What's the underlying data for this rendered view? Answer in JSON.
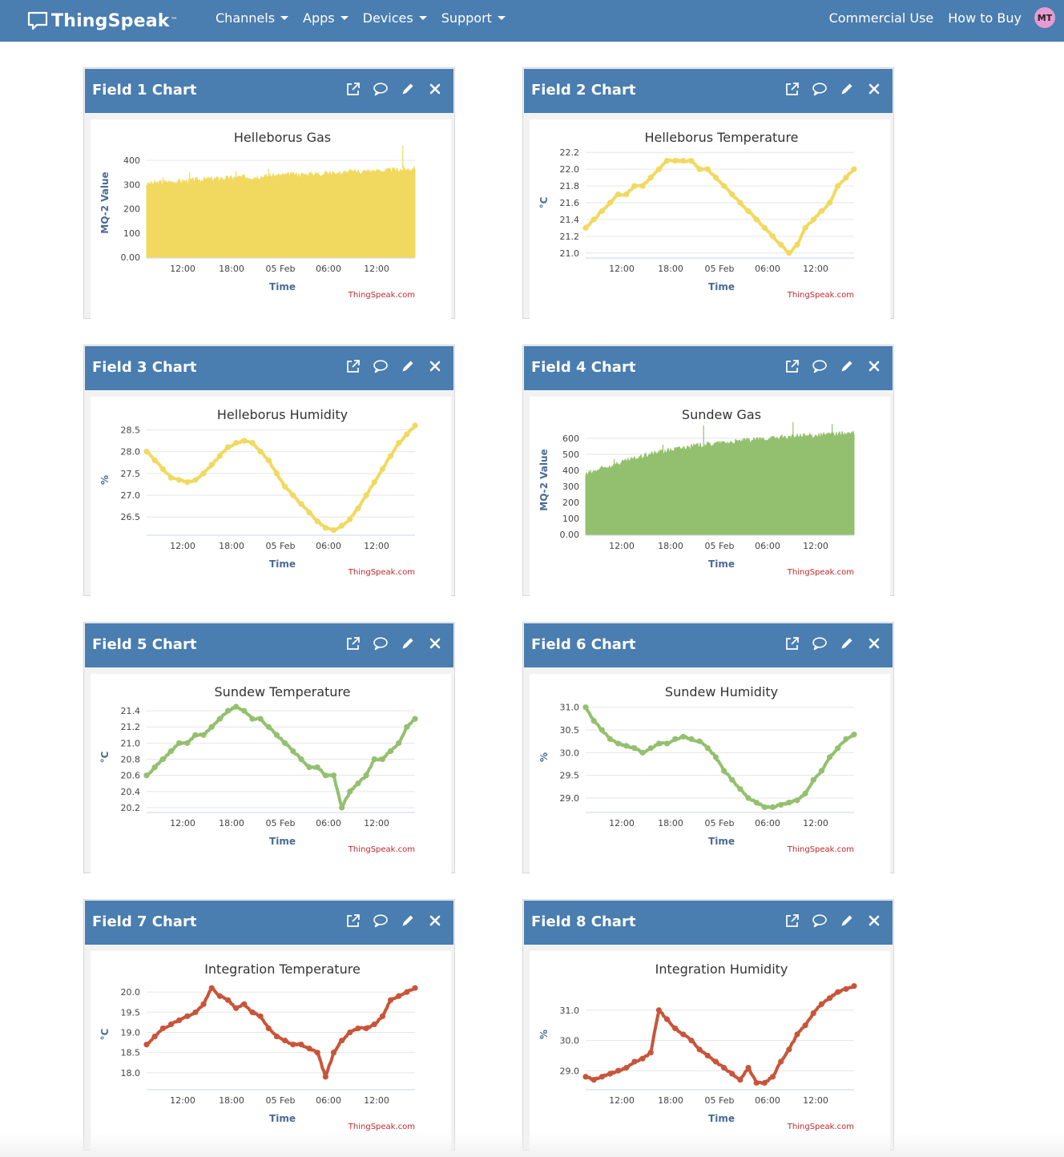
{
  "nav": {
    "brand": "ThingSpeak",
    "brand_tm": "™",
    "menu": [
      "Channels",
      "Apps",
      "Devices",
      "Support"
    ],
    "right_links": [
      "Commercial Use",
      "How to Buy"
    ],
    "avatar_initials": "MT"
  },
  "widgets": [
    {
      "title": "Field 1 Chart"
    },
    {
      "title": "Field 2 Chart"
    },
    {
      "title": "Field 3 Chart"
    },
    {
      "title": "Field 4 Chart"
    },
    {
      "title": "Field 5 Chart"
    },
    {
      "title": "Field 6 Chart"
    },
    {
      "title": "Field 7 Chart"
    },
    {
      "title": "Field 8 Chart"
    }
  ],
  "icons": {
    "open_external": "external-link-icon",
    "comment": "comment-icon",
    "edit": "pencil-icon",
    "close": "close-icon"
  },
  "credit": "ThingSpeak.com",
  "chart_data": [
    {
      "type": "area",
      "title": "Helleborus Gas",
      "xlabel": "Time",
      "ylabel": "MQ-2 Value",
      "color": "#f1d95f",
      "x_ticks": [
        "12:00",
        "18:00",
        "05 Feb",
        "06:00",
        "12:00"
      ],
      "y_ticks": [
        "0.00",
        "100",
        "200",
        "300",
        "400"
      ],
      "ylim": [
        0,
        450
      ],
      "x": [
        0,
        1,
        2,
        3,
        4,
        5,
        6,
        7,
        8,
        9,
        10,
        11,
        12,
        13,
        14,
        15,
        16,
        17,
        18,
        19,
        20,
        21,
        22,
        23,
        24,
        25,
        26,
        27,
        28,
        29,
        30,
        31,
        32,
        33
      ],
      "y": [
        300,
        305,
        308,
        310,
        312,
        314,
        318,
        320,
        322,
        324,
        326,
        328,
        330,
        330,
        332,
        334,
        336,
        338,
        340,
        340,
        342,
        344,
        345,
        346,
        348,
        350,
        352,
        354,
        355,
        356,
        358,
        360,
        362,
        365
      ],
      "spikes": [
        [
          2,
          330
        ],
        [
          5.3,
          350
        ],
        [
          11,
          355
        ],
        [
          15,
          365
        ],
        [
          25,
          365
        ],
        [
          31.5,
          460
        ]
      ]
    },
    {
      "type": "line",
      "title": "Helleborus Temperature",
      "xlabel": "Time",
      "ylabel": "°C",
      "color": "#f1d95f",
      "x_ticks": [
        "12:00",
        "18:00",
        "05 Feb",
        "06:00",
        "12:00"
      ],
      "y_ticks": [
        "21.0",
        "21.2",
        "21.4",
        "21.6",
        "21.8",
        "22.0",
        "22.2"
      ],
      "ylim": [
        20.95,
        22.25
      ],
      "x": [
        0,
        1,
        2,
        3,
        4,
        5,
        6,
        7,
        8,
        9,
        10,
        11,
        12,
        13,
        14,
        15,
        16,
        17,
        18,
        19,
        20,
        21,
        22,
        23,
        24,
        25,
        26,
        27,
        28,
        29,
        30,
        31,
        32,
        33
      ],
      "y": [
        21.3,
        21.4,
        21.5,
        21.6,
        21.7,
        21.7,
        21.8,
        21.8,
        21.9,
        22.0,
        22.1,
        22.1,
        22.1,
        22.1,
        22.0,
        22.0,
        21.9,
        21.8,
        21.7,
        21.6,
        21.5,
        21.4,
        21.3,
        21.2,
        21.1,
        21.0,
        21.1,
        21.3,
        21.4,
        21.5,
        21.6,
        21.8,
        21.9,
        22.0
      ]
    },
    {
      "type": "line",
      "title": "Helleborus Humidity",
      "xlabel": "Time",
      "ylabel": "%",
      "color": "#f1d95f",
      "x_ticks": [
        "12:00",
        "18:00",
        "05 Feb",
        "06:00",
        "12:00"
      ],
      "y_ticks": [
        "26.5",
        "27.0",
        "27.5",
        "28.0",
        "28.5"
      ],
      "ylim": [
        26.1,
        28.6
      ],
      "x": [
        0,
        1,
        2,
        3,
        4,
        5,
        6,
        7,
        8,
        9,
        10,
        11,
        12,
        13,
        14,
        15,
        16,
        17,
        18,
        19,
        20,
        21,
        22,
        23,
        24,
        25,
        26,
        27,
        28,
        29,
        30,
        31,
        32,
        33
      ],
      "y": [
        28.0,
        27.8,
        27.6,
        27.4,
        27.35,
        27.3,
        27.35,
        27.5,
        27.7,
        27.9,
        28.1,
        28.2,
        28.25,
        28.2,
        28.0,
        27.8,
        27.5,
        27.2,
        27.0,
        26.8,
        26.6,
        26.4,
        26.25,
        26.2,
        26.3,
        26.45,
        26.7,
        27.0,
        27.3,
        27.6,
        27.9,
        28.2,
        28.4,
        28.6
      ]
    },
    {
      "type": "area",
      "title": "Sundew Gas",
      "xlabel": "Time",
      "ylabel": "MQ-2 Value",
      "color": "#93c06e",
      "x_ticks": [
        "12:00",
        "18:00",
        "05 Feb",
        "06:00",
        "12:00"
      ],
      "y_ticks": [
        "0.00",
        "100",
        "200",
        "300",
        "400",
        "500",
        "600"
      ],
      "ylim": [
        0,
        680
      ],
      "x": [
        0,
        1,
        2,
        3,
        4,
        5,
        6,
        7,
        8,
        9,
        10,
        11,
        12,
        13,
        14,
        15,
        16,
        17,
        18,
        19,
        20,
        21,
        22,
        23,
        24,
        25,
        26,
        27,
        28,
        29,
        30,
        31,
        32,
        33
      ],
      "y": [
        370,
        390,
        410,
        425,
        440,
        455,
        470,
        485,
        500,
        510,
        520,
        530,
        540,
        548,
        555,
        560,
        565,
        570,
        575,
        580,
        585,
        590,
        595,
        600,
        603,
        606,
        610,
        613,
        616,
        620,
        623,
        626,
        628,
        630
      ],
      "spikes": [
        [
          3.5,
          470
        ],
        [
          9.5,
          560
        ],
        [
          14.5,
          680
        ],
        [
          25.5,
          700
        ],
        [
          30.3,
          690
        ]
      ]
    },
    {
      "type": "line",
      "title": "Sundew Temperature",
      "xlabel": "Time",
      "ylabel": "°C",
      "color": "#93c06e",
      "x_ticks": [
        "12:00",
        "18:00",
        "05 Feb",
        "06:00",
        "12:00"
      ],
      "y_ticks": [
        "20.2",
        "20.4",
        "20.6",
        "20.8",
        "21.0",
        "21.2",
        "21.4"
      ],
      "ylim": [
        20.15,
        21.5
      ],
      "x": [
        0,
        1,
        2,
        3,
        4,
        5,
        6,
        7,
        8,
        9,
        10,
        11,
        12,
        13,
        14,
        15,
        16,
        17,
        18,
        19,
        20,
        21,
        22,
        23,
        24,
        25,
        26,
        27,
        28,
        29,
        30,
        31,
        32,
        33
      ],
      "y": [
        20.6,
        20.7,
        20.8,
        20.9,
        21.0,
        21.0,
        21.1,
        21.1,
        21.2,
        21.3,
        21.4,
        21.45,
        21.4,
        21.3,
        21.3,
        21.2,
        21.1,
        21.0,
        20.9,
        20.8,
        20.7,
        20.7,
        20.6,
        20.6,
        20.2,
        20.4,
        20.5,
        20.6,
        20.8,
        20.8,
        20.9,
        21.0,
        21.2,
        21.3
      ]
    },
    {
      "type": "line",
      "title": "Sundew Humidity",
      "xlabel": "Time",
      "ylabel": "%",
      "color": "#93c06e",
      "x_ticks": [
        "12:00",
        "18:00",
        "05 Feb",
        "06:00",
        "12:00"
      ],
      "y_ticks": [
        "29.0",
        "29.5",
        "30.0",
        "30.5",
        "31.0"
      ],
      "ylim": [
        28.7,
        31.1
      ],
      "x": [
        0,
        1,
        2,
        3,
        4,
        5,
        6,
        7,
        8,
        9,
        10,
        11,
        12,
        13,
        14,
        15,
        16,
        17,
        18,
        19,
        20,
        21,
        22,
        23,
        24,
        25,
        26,
        27,
        28,
        29,
        30,
        31,
        32,
        33
      ],
      "y": [
        31.0,
        30.7,
        30.5,
        30.3,
        30.2,
        30.15,
        30.1,
        30.0,
        30.1,
        30.2,
        30.2,
        30.3,
        30.35,
        30.3,
        30.25,
        30.1,
        29.9,
        29.6,
        29.4,
        29.2,
        29.0,
        28.9,
        28.8,
        28.8,
        28.85,
        28.9,
        28.95,
        29.1,
        29.4,
        29.6,
        29.9,
        30.1,
        30.3,
        30.4
      ]
    },
    {
      "type": "line",
      "title": "Integration Temperature",
      "xlabel": "Time",
      "ylabel": "°C",
      "color": "#c8553a",
      "x_ticks": [
        "12:00",
        "18:00",
        "05 Feb",
        "06:00",
        "12:00"
      ],
      "y_ticks": [
        "18.0",
        "18.5",
        "19.0",
        "19.5",
        "20.0"
      ],
      "ylim": [
        17.6,
        20.3
      ],
      "x": [
        0,
        1,
        2,
        3,
        4,
        5,
        6,
        7,
        8,
        9,
        10,
        11,
        12,
        13,
        14,
        15,
        16,
        17,
        18,
        19,
        20,
        21,
        22,
        23,
        24,
        25,
        26,
        27,
        28,
        29,
        30,
        31,
        32,
        33
      ],
      "y": [
        18.7,
        18.9,
        19.1,
        19.2,
        19.3,
        19.4,
        19.5,
        19.7,
        20.1,
        19.9,
        19.8,
        19.6,
        19.7,
        19.5,
        19.4,
        19.1,
        18.9,
        18.8,
        18.7,
        18.7,
        18.6,
        18.5,
        17.9,
        18.5,
        18.8,
        19.0,
        19.1,
        19.1,
        19.2,
        19.4,
        19.8,
        19.9,
        20.0,
        20.1
      ]
    },
    {
      "type": "line",
      "title": "Integration Humidity",
      "xlabel": "Time",
      "ylabel": "%",
      "color": "#c8553a",
      "x_ticks": [
        "12:00",
        "18:00",
        "05 Feb",
        "06:00",
        "12:00"
      ],
      "y_ticks": [
        "29.0",
        "30.0",
        "31.0"
      ],
      "ylim": [
        28.4,
        32.0
      ],
      "x": [
        0,
        1,
        2,
        3,
        4,
        5,
        6,
        7,
        8,
        9,
        10,
        11,
        12,
        13,
        14,
        15,
        16,
        17,
        18,
        19,
        20,
        21,
        22,
        23,
        24,
        25,
        26,
        27,
        28,
        29,
        30,
        31,
        32,
        33
      ],
      "y": [
        28.8,
        28.7,
        28.8,
        28.9,
        29.0,
        29.1,
        29.3,
        29.4,
        29.6,
        31.0,
        30.7,
        30.4,
        30.2,
        30.0,
        29.7,
        29.5,
        29.3,
        29.1,
        28.9,
        28.7,
        29.1,
        28.6,
        28.6,
        28.8,
        29.3,
        29.7,
        30.2,
        30.5,
        30.9,
        31.2,
        31.4,
        31.6,
        31.7,
        31.8
      ]
    }
  ]
}
